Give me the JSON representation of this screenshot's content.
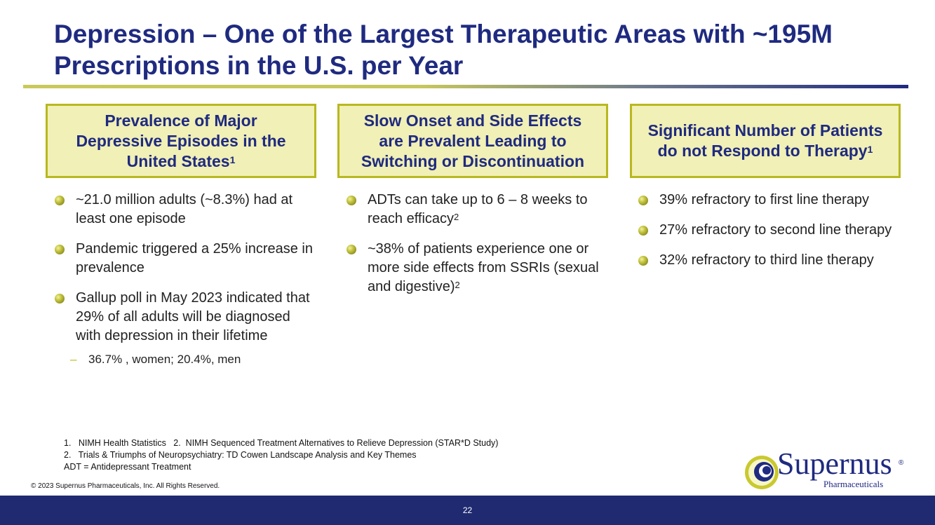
{
  "title": {
    "line1": "Depression – One of the Largest Therapeutic Areas with  ~195M",
    "line2": "Prescriptions in the U.S. per Year"
  },
  "columns": [
    {
      "heading_lines": [
        "Prevalence of Major",
        "Depressive Episodes in the",
        "United States"
      ],
      "heading_sup": "1",
      "bullets": [
        {
          "text": "~21.0 million adults (~8.3%) had at least one episode"
        },
        {
          "text": "Pandemic triggered a 25% increase in prevalence"
        },
        {
          "text": "Gallup poll in May 2023 indicated that 29% of all adults will be diagnosed with depression in their lifetime"
        }
      ],
      "sub_bullet": "36.7% , women; 20.4%, men"
    },
    {
      "heading_lines": [
        "Slow Onset and Side Effects",
        "are Prevalent Leading to",
        "Switching or Discontinuation"
      ],
      "bullets": [
        {
          "text": "ADTs can take up to 6 – 8 weeks to reach efficacy",
          "sup": "2"
        },
        {
          "text": "~38% of patients experience one or more side effects from SSRIs (sexual and digestive)",
          "sup": "2"
        }
      ]
    },
    {
      "heading_lines": [
        "Significant Number of Patients",
        "do not Respond to Therapy"
      ],
      "heading_sup": "1",
      "bullets": [
        {
          "text": "39% refractory to first line therapy"
        },
        {
          "text": "27% refractory to second line therapy"
        },
        {
          "text": "32% refractory to third line therapy"
        }
      ]
    }
  ],
  "footnotes": {
    "line1": "1.   NIMH Health Statistics   2.  NIMH Sequenced Treatment Alternatives to Relieve Depression (STAR*D Study)",
    "line2": "2.   Trials & Triumphs of Neuropsychiatry: TD Cowen Landscape Analysis and Key Themes",
    "line3": "ADT = Antidepressant Treatment"
  },
  "copyright": "© 2023 Supernus Pharmaceuticals, Inc. All Rights Reserved.",
  "logo": {
    "name": "Supernus",
    "registered": "®",
    "subtitle": "Pharmaceuticals"
  },
  "page_number": "22",
  "colors": {
    "navy": "#1f2a80",
    "header_fill": "#f1f0b6",
    "header_border": "#b8b820",
    "footer_bar": "#1f2a70"
  }
}
